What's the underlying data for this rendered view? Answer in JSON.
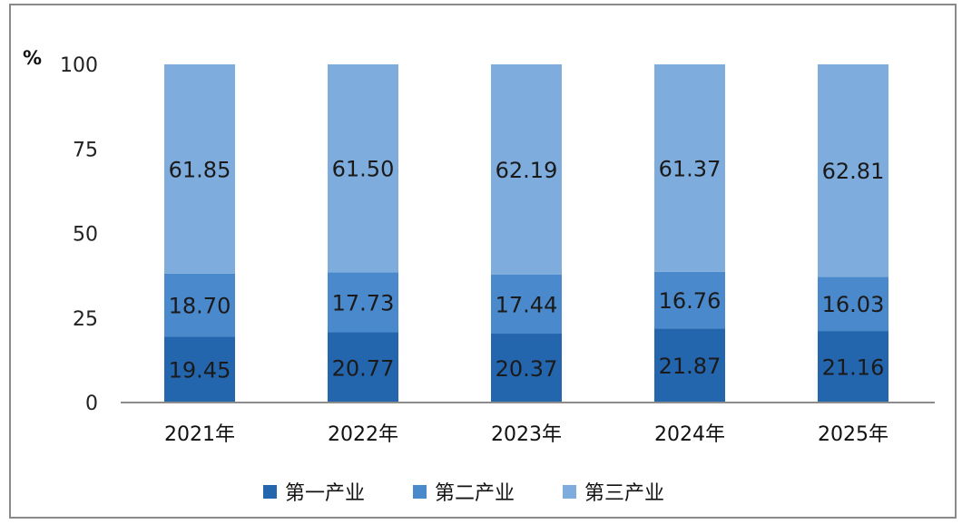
{
  "chart_data": {
    "type": "bar",
    "stacked": true,
    "ylabel": "%",
    "ylim": [
      0,
      100
    ],
    "yticks": [
      0,
      25,
      50,
      75,
      100
    ],
    "categories": [
      "2021年",
      "2022年",
      "2023年",
      "2024年",
      "2025年"
    ],
    "series": [
      {
        "name": "第一产业",
        "color": "#2466ae",
        "values": [
          19.45,
          20.77,
          20.37,
          21.87,
          21.16
        ]
      },
      {
        "name": "第二产业",
        "color": "#4a89cc",
        "values": [
          18.7,
          17.73,
          17.44,
          16.76,
          16.03
        ]
      },
      {
        "name": "第三产业",
        "color": "#7eaddd",
        "values": [
          61.85,
          61.5,
          62.19,
          61.37,
          62.81
        ]
      }
    ],
    "grid": false,
    "legend": "bottom"
  }
}
